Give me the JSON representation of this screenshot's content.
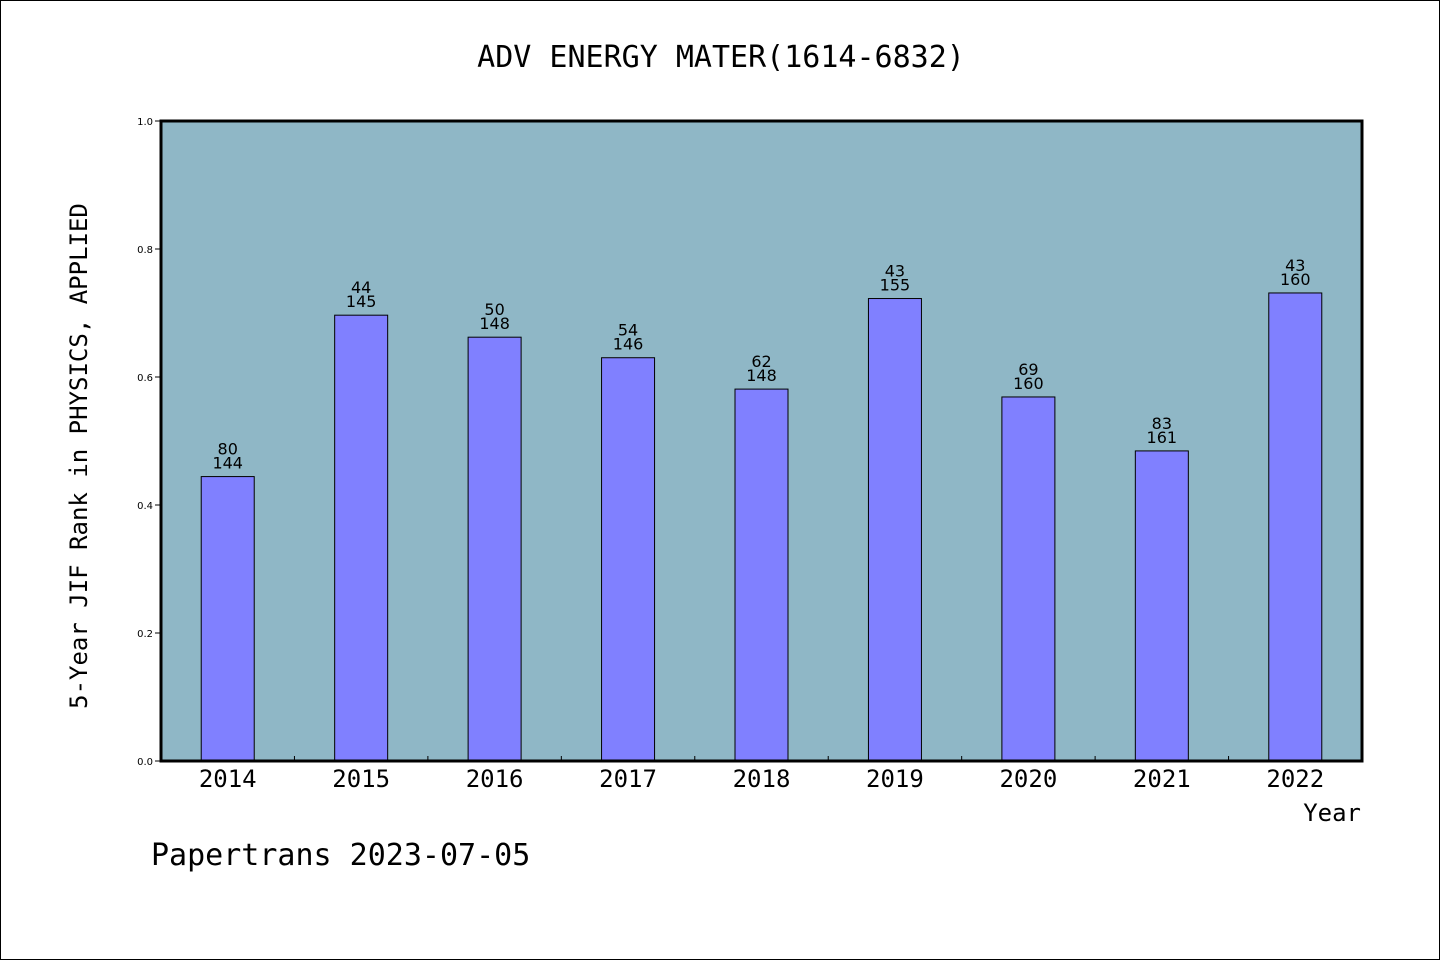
{
  "chart_data": {
    "type": "bar",
    "title": "ADV ENERGY MATER(1614-6832)",
    "xlabel": "Year",
    "ylabel": "5-Year JIF Rank in PHYSICS, APPLIED",
    "ylim": [
      0,
      1.0
    ],
    "yticks": [
      "0.0",
      "0.2",
      "0.4",
      "0.6",
      "0.8",
      "1.0"
    ],
    "grid": false,
    "categories": [
      "2014",
      "2015",
      "2016",
      "2017",
      "2018",
      "2019",
      "2020",
      "2021",
      "2022"
    ],
    "values": [
      0.4444,
      0.6966,
      0.6622,
      0.6301,
      0.5811,
      0.7226,
      0.5688,
      0.4845,
      0.7313
    ],
    "ranks": [
      "80",
      "44",
      "50",
      "54",
      "62",
      "43",
      "69",
      "83",
      "43"
    ],
    "totals": [
      "144",
      "145",
      "148",
      "146",
      "148",
      "155",
      "160",
      "161",
      "160"
    ],
    "colors": {
      "plot_background": "#8fb7c6",
      "bar_fill": "#8080ff",
      "bar_stroke": "#000000"
    }
  },
  "footer": {
    "text": "Papertrans 2023-07-05"
  }
}
